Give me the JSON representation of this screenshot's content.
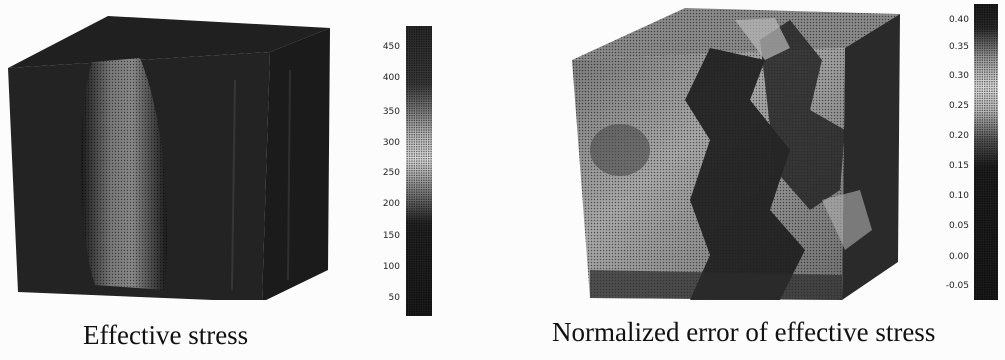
{
  "figure": {
    "left_panel": {
      "caption": "Effective stress",
      "colorbar": {
        "ticks": [
          "450",
          "400",
          "350",
          "300",
          "250",
          "200",
          "150",
          "100",
          "50"
        ]
      }
    },
    "right_panel": {
      "caption": "Normalized error of effective stress",
      "colorbar": {
        "ticks": [
          "0.40",
          "0.35",
          "0.30",
          "0.25",
          "0.20",
          "0.15",
          "0.10",
          "0.05",
          "0.00",
          "-0.05"
        ]
      }
    }
  }
}
